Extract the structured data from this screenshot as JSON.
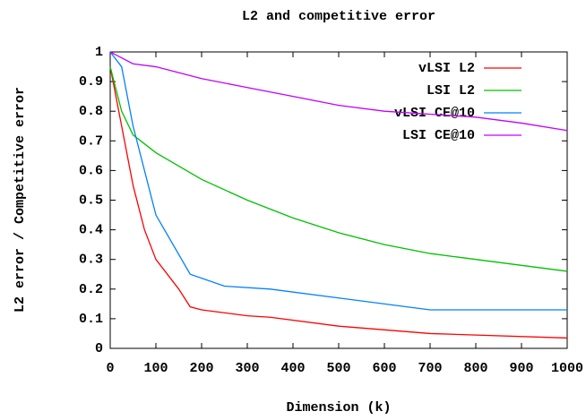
{
  "chart_data": {
    "type": "line",
    "title": "L2 and competitive error",
    "x_label": "Dimension (k)",
    "y_label": "L2 error / Competitive error",
    "xlim": [
      0,
      1000
    ],
    "ylim": [
      0,
      1
    ],
    "xticks": [
      0,
      100,
      200,
      300,
      400,
      500,
      600,
      700,
      800,
      900,
      1000
    ],
    "yticks": [
      0,
      0.1,
      0.2,
      0.3,
      0.4,
      0.5,
      0.6,
      0.7,
      0.8,
      0.9,
      1
    ],
    "legend": "top-right",
    "series": [
      {
        "name": "vLSI L2",
        "color": "#ff0000",
        "x": [
          0,
          25,
          50,
          75,
          100,
          150,
          175,
          200,
          300,
          350,
          500,
          700,
          1000
        ],
        "values": [
          0.95,
          0.75,
          0.55,
          0.4,
          0.3,
          0.2,
          0.14,
          0.13,
          0.11,
          0.105,
          0.075,
          0.05,
          0.035
        ]
      },
      {
        "name": "LSI L2",
        "color": "#00c000",
        "x": [
          0,
          25,
          50,
          100,
          200,
          300,
          400,
          500,
          600,
          700,
          800,
          900,
          1000
        ],
        "values": [
          0.95,
          0.8,
          0.72,
          0.66,
          0.57,
          0.5,
          0.44,
          0.39,
          0.35,
          0.32,
          0.3,
          0.28,
          0.26
        ]
      },
      {
        "name": "vLSI CE@10",
        "color": "#0080ff",
        "x": [
          0,
          25,
          50,
          100,
          175,
          250,
          350,
          500,
          700,
          1000
        ],
        "values": [
          1.0,
          0.95,
          0.75,
          0.45,
          0.25,
          0.21,
          0.2,
          0.17,
          0.13,
          0.13
        ]
      },
      {
        "name": "LSI CE@10",
        "color": "#c000ff",
        "x": [
          0,
          50,
          100,
          200,
          300,
          400,
          500,
          600,
          700,
          800,
          900,
          1000
        ],
        "values": [
          1.0,
          0.96,
          0.95,
          0.91,
          0.88,
          0.85,
          0.82,
          0.8,
          0.79,
          0.78,
          0.76,
          0.735
        ]
      }
    ]
  }
}
